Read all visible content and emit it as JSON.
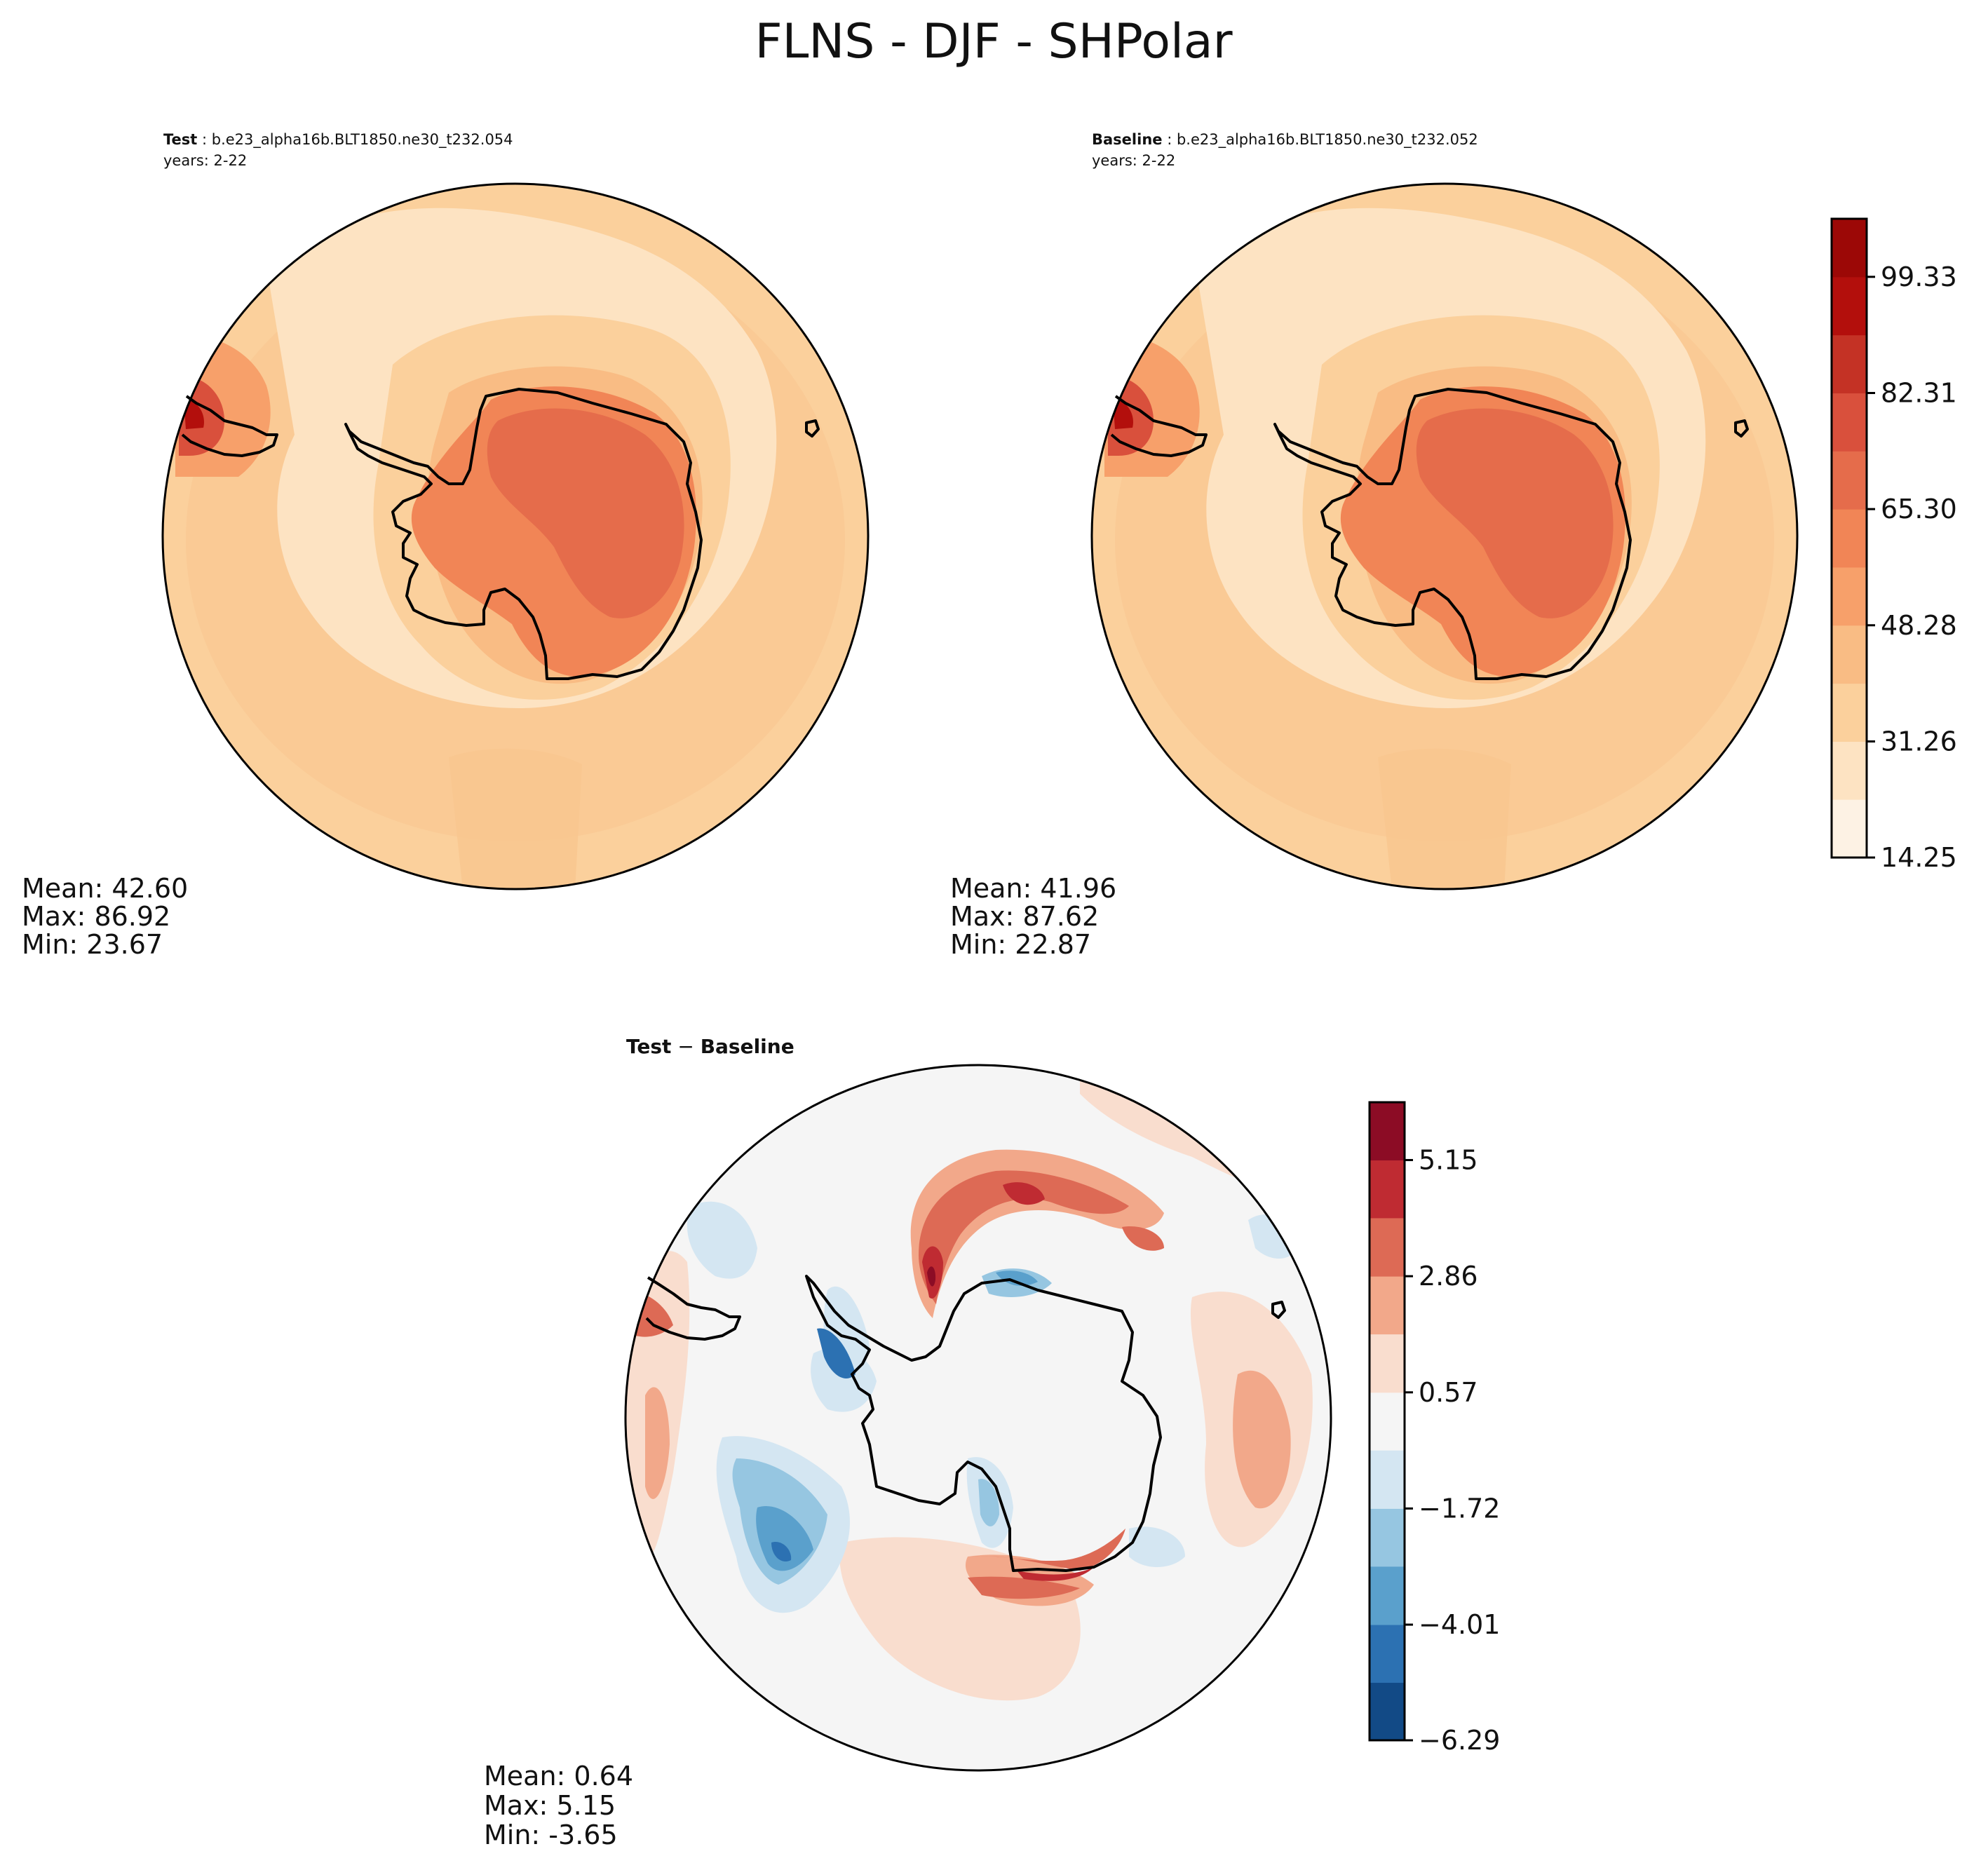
{
  "chart_data": [
    {
      "type": "heatmap",
      "panel": "test",
      "figure_title": "FLNS - DJF - SHPolar",
      "label_bold": "Test",
      "label_rest": " : b.e23_alpha16b.BLT1850.ne30_t232.054",
      "years": "years: 2-22",
      "stats": {
        "mean": "Mean: 42.60",
        "max": "Max: 86.92",
        "min": "Min: 23.67"
      },
      "colormap": "Reds-like (light cream to dark red)"
    },
    {
      "type": "heatmap",
      "panel": "baseline",
      "label_bold": "Baseline",
      "label_rest": " : b.e23_alpha16b.BLT1850.ne30_t232.052",
      "years": "years: 2-22",
      "stats": {
        "mean": "Mean: 41.96",
        "max": "Max: 87.62",
        "min": "Min: 22.87"
      },
      "colorbar": {
        "levels": [
          14.25,
          22.76,
          31.26,
          39.77,
          48.28,
          56.79,
          65.3,
          73.81,
          82.31,
          90.82,
          99.33,
          107.84
        ],
        "tick_labels": [
          "14.25",
          "31.26",
          "48.28",
          "65.30",
          "82.31",
          "99.33"
        ],
        "colors": [
          "#fdf2e4",
          "#fde3c2",
          "#fbd09c",
          "#f9bc84",
          "#f7a06a",
          "#f18556",
          "#e56c4b",
          "#d9503c",
          "#c43225",
          "#b30f0c",
          "#9c0806",
          "#7f0403"
        ]
      }
    },
    {
      "type": "heatmap",
      "panel": "difference",
      "title": "Test − Baseline",
      "title_bold_a": "Test",
      "title_op": " − ",
      "title_bold_b": "Baseline",
      "stats": {
        "mean": "Mean:  0.64",
        "max": "Max:  5.15",
        "min": "Min: -3.65"
      },
      "colorbar": {
        "levels": [
          -6.29,
          -5.15,
          -4.01,
          -2.86,
          -1.72,
          -0.57,
          0.57,
          1.72,
          2.86,
          4.01,
          5.15,
          6.29
        ],
        "tick_labels": [
          "−6.29",
          "−4.01",
          "−1.72",
          "0.57",
          "2.86",
          "5.15"
        ],
        "colors": [
          "#124a86",
          "#2c71b2",
          "#5aa0cc",
          "#96c6e1",
          "#d4e6f2",
          "#f5f5f5",
          "#f9ddce",
          "#f2a88a",
          "#dd6a55",
          "#bf2b32",
          "#8c0c25"
        ]
      }
    }
  ]
}
